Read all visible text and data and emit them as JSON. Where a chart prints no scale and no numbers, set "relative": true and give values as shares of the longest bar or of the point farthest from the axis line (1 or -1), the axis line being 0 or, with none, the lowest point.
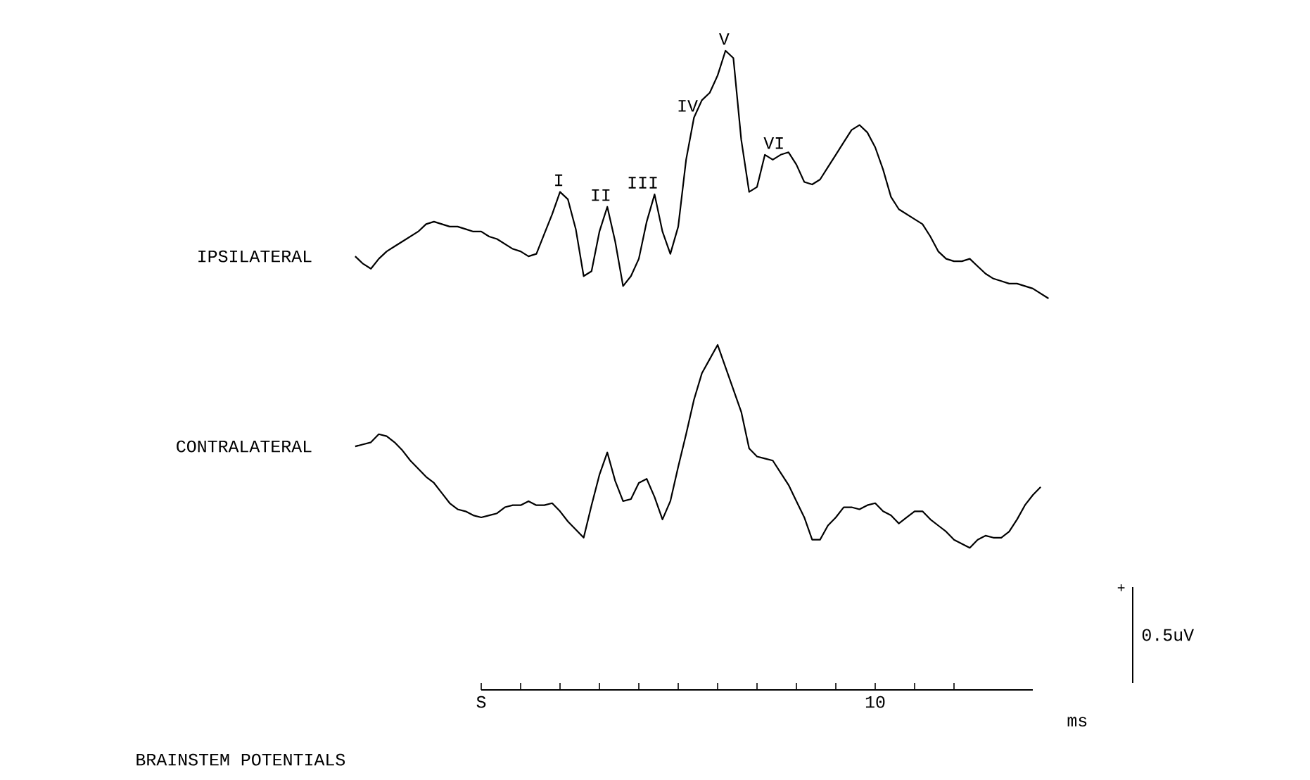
{
  "chart_data": [
    {
      "type": "line",
      "relative": true,
      "categories": [
        null,
        null,
        null,
        null,
        null,
        null,
        null,
        null,
        null,
        null,
        null,
        null,
        null,
        null,
        null,
        null,
        null,
        null,
        null,
        null,
        null,
        null,
        null,
        null,
        null,
        null,
        null,
        null,
        null,
        null,
        null,
        null,
        null,
        null,
        null,
        null,
        null,
        null,
        null,
        null,
        null,
        null,
        null,
        null,
        null,
        null,
        null,
        null,
        null,
        null,
        null,
        null,
        null,
        null,
        null,
        null,
        null,
        null,
        null,
        null,
        null,
        null,
        null,
        null,
        null,
        null,
        null,
        null,
        null,
        null,
        null,
        null,
        null,
        null,
        null,
        null,
        null,
        null,
        null,
        null,
        null,
        null,
        null,
        null,
        null,
        null,
        null,
        null,
        null
      ],
      "series": [
        {
          "name": "IPSILATERAL",
          "color": "#000000",
          "values": [
            0.17,
            0.14,
            0.12,
            0.16,
            0.19,
            0.21,
            0.23,
            0.25,
            0.27,
            0.3,
            0.31,
            0.3,
            0.29,
            0.29,
            0.28,
            0.27,
            0.27,
            0.25,
            0.24,
            0.22,
            0.2,
            0.19,
            0.17,
            0.18,
            0.26,
            0.34,
            0.43,
            0.4,
            0.28,
            0.09,
            0.11,
            0.27,
            0.37,
            0.23,
            0.05,
            0.09,
            0.16,
            0.31,
            0.42,
            0.27,
            0.18,
            0.29,
            0.56,
            0.73,
            0.8,
            0.83,
            0.9,
            1.0,
            0.97,
            0.64,
            0.43,
            0.45,
            0.58,
            0.56,
            0.58,
            0.59,
            0.54,
            0.47,
            0.46,
            0.48,
            0.53,
            0.58,
            0.63,
            0.68,
            0.7,
            0.67,
            0.61,
            0.52,
            0.41,
            0.36,
            0.34,
            0.32,
            0.3,
            0.25,
            0.19,
            0.16,
            0.15,
            0.15,
            0.16,
            0.13,
            0.1,
            0.08,
            0.07,
            0.06,
            0.06,
            0.05,
            0.04,
            0.02,
            0.0
          ]
        }
      ],
      "annotations": [
        "I",
        "II",
        "III",
        "IV",
        "V",
        "VI"
      ]
    },
    {
      "type": "line",
      "relative": true,
      "title": "BRAINSTEM POTENTIALS",
      "categories": [
        null,
        null,
        null,
        null,
        null,
        null,
        null,
        null,
        null,
        null,
        null,
        null,
        null,
        null,
        null,
        null,
        null,
        null,
        null,
        null,
        null,
        null,
        null,
        null,
        null,
        null,
        null,
        null,
        null,
        null,
        null,
        null,
        null,
        null,
        null,
        null,
        null,
        null,
        null,
        null,
        null,
        null,
        null,
        null,
        null,
        null,
        null,
        null,
        null,
        null,
        null,
        null,
        null,
        null,
        null,
        null,
        null,
        null,
        null,
        null,
        null,
        null,
        null,
        null,
        null,
        null,
        null,
        null,
        null,
        null,
        null,
        null,
        null,
        null,
        null,
        null,
        null,
        null,
        null,
        null,
        null,
        null,
        null,
        null,
        null,
        null,
        null,
        null,
        null
      ],
      "series": [
        {
          "name": "CONTRALATERAL",
          "color": "#000000",
          "values": [
            0.5,
            0.51,
            0.52,
            0.56,
            0.55,
            0.52,
            0.48,
            0.43,
            0.39,
            0.35,
            0.32,
            0.27,
            0.22,
            0.19,
            0.18,
            0.16,
            0.15,
            0.16,
            0.17,
            0.2,
            0.21,
            0.21,
            0.23,
            0.21,
            0.21,
            0.22,
            0.18,
            0.13,
            0.09,
            0.05,
            0.21,
            0.36,
            0.47,
            0.33,
            0.23,
            0.24,
            0.32,
            0.34,
            0.25,
            0.14,
            0.23,
            0.4,
            0.56,
            0.73,
            0.86,
            0.93,
            1.0,
            0.89,
            0.78,
            0.67,
            0.49,
            0.45,
            0.44,
            0.43,
            0.37,
            0.31,
            0.23,
            0.15,
            0.04,
            0.04,
            0.11,
            0.15,
            0.2,
            0.2,
            0.19,
            0.21,
            0.22,
            0.18,
            0.16,
            0.12,
            0.15,
            0.18,
            0.18,
            0.14,
            0.11,
            0.08,
            0.04,
            0.02,
            0.0,
            0.04,
            0.06,
            0.05,
            0.05,
            0.08,
            0.14,
            0.21,
            0.26,
            0.3,
            null
          ]
        }
      ],
      "annotations": [
        "S",
        "10",
        "ms",
        "+",
        "0.5uV"
      ]
    }
  ]
}
